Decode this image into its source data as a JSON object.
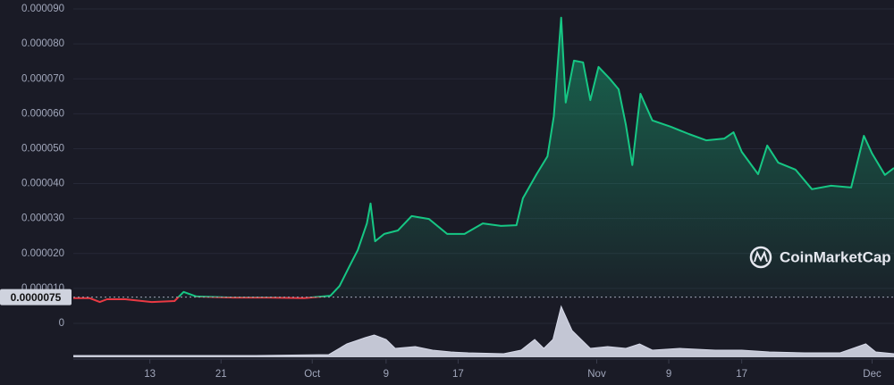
{
  "chart_data": {
    "type": "line",
    "watermark": "CoinMarketCap",
    "x": [
      0,
      1.8,
      2.9,
      3.7,
      5.7,
      8.6,
      11.1,
      12.1,
      13.5,
      17.5,
      21.4,
      25.3,
      28.2,
      29.2,
      30.2,
      31.2,
      32.2,
      32.6,
      33.1,
      34.1,
      35.6,
      37.1,
      39.0,
      41.0,
      42.9,
      44.9,
      46.9,
      48.6,
      49.3,
      50.8,
      52.0,
      52.7,
      53.5,
      54.0,
      54.9,
      55.9,
      56.7,
      57.6,
      58.8,
      59.8,
      60.6,
      61.3,
      62.2,
      63.5,
      65.5,
      67.5,
      69.4,
      71.4,
      72.4,
      73.3,
      75.1,
      76.1,
      77.3,
      79.2,
      81.0,
      83.1,
      85.3,
      86.7,
      87.6,
      89.0,
      90.0
    ],
    "series": [
      {
        "color": "#16c784",
        "below_color": "#ea3943",
        "values": [
          7.2e-06,
          7.2e-06,
          6.1e-06,
          6.9e-06,
          6.9e-06,
          6.1e-06,
          6.4e-06,
          9e-06,
          7.7e-06,
          7.4e-06,
          7.4e-06,
          7.2e-06,
          7.9e-06,
          1.07e-05,
          1.59e-05,
          2.1e-05,
          2.86e-05,
          3.43e-05,
          2.35e-05,
          2.56e-05,
          2.66e-05,
          3.07e-05,
          2.99e-05,
          2.56e-05,
          2.56e-05,
          2.86e-05,
          2.79e-05,
          2.81e-05,
          3.58e-05,
          4.27e-05,
          4.78e-05,
          5.93e-05,
          8.75e-05,
          6.32e-05,
          7.52e-05,
          7.47e-05,
          6.39e-05,
          7.34e-05,
          7.01e-05,
          6.7e-05,
          5.68e-05,
          4.53e-05,
          6.57e-05,
          5.81e-05,
          5.63e-05,
          5.42e-05,
          5.24e-05,
          5.29e-05,
          5.47e-05,
          4.91e-05,
          4.27e-05,
          5.09e-05,
          4.6e-05,
          4.4e-05,
          3.84e-05,
          3.94e-05,
          3.89e-05,
          5.37e-05,
          4.86e-05,
          4.25e-05,
          4.45e-05
        ]
      }
    ],
    "baseline": {
      "value": 7.5e-06,
      "label": "0.0000075"
    },
    "xlim": [
      0,
      90
    ],
    "xticks": [
      {
        "value": 8.4,
        "label": "13"
      },
      {
        "value": 16.2,
        "label": "21"
      },
      {
        "value": 26.2,
        "label": "Oct"
      },
      {
        "value": 34.3,
        "label": "9"
      },
      {
        "value": 42.2,
        "label": "17"
      },
      {
        "value": 57.4,
        "label": "Nov"
      },
      {
        "value": 65.3,
        "label": "9"
      },
      {
        "value": 73.3,
        "label": "17"
      },
      {
        "value": 87.6,
        "label": "Dec"
      }
    ],
    "ylim": [
      0,
      9e-05
    ],
    "yticks": [
      0,
      {
        "value": 1e-05,
        "label": "0.000010"
      },
      {
        "value": 2e-05,
        "label": "0.000020"
      },
      {
        "value": 3e-05,
        "label": "0.000030"
      },
      {
        "value": 4e-05,
        "label": "0.000040"
      },
      {
        "value": 5e-05,
        "label": "0.000050"
      },
      {
        "value": 6e-05,
        "label": "0.000060"
      },
      {
        "value": 7e-05,
        "label": "0.000070"
      },
      {
        "value": 8e-05,
        "label": "0.000080"
      },
      {
        "value": 9e-05,
        "label": "0.000090"
      }
    ],
    "grid": true,
    "volume": {
      "color": "#d6d9e8",
      "ylim": [
        0,
        60
      ],
      "x": [
        0,
        10,
        20,
        28,
        30,
        32,
        33,
        34.3,
        35.3,
        37.5,
        39.4,
        41.4,
        43.3,
        47.2,
        49.1,
        50.6,
        51.6,
        52.6,
        53.5,
        54.7,
        56.7,
        58.6,
        60.6,
        62.1,
        63.5,
        66.5,
        70.4,
        73.3,
        76.3,
        80.2,
        84.1,
        86.9,
        88.0,
        90.0
      ],
      "values": [
        2,
        2,
        2,
        3,
        15,
        22,
        25,
        20,
        10,
        12,
        8,
        6,
        5,
        4,
        8,
        20,
        10,
        20,
        57,
        30,
        10,
        12,
        10,
        15,
        8,
        10,
        8,
        8,
        6,
        5,
        5,
        15,
        6,
        4
      ]
    }
  }
}
